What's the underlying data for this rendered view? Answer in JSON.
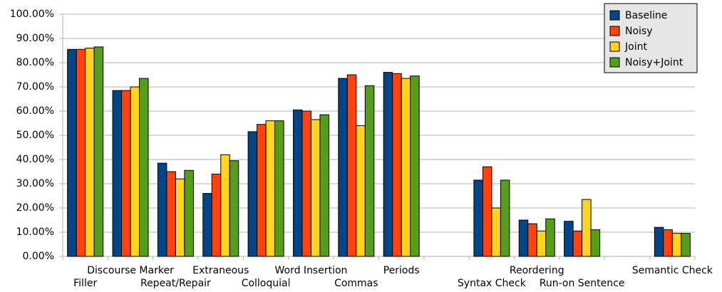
{
  "chart_data": {
    "type": "bar",
    "categories": [
      "Filler",
      "Discourse Marker",
      "Repeat/Repair",
      "Extraneous",
      "Colloquial",
      "Word Insertion",
      "Commas",
      "Periods",
      null,
      "Syntax Check",
      "Reordering",
      "Run-on Sentence",
      null,
      "Semantic Check"
    ],
    "series": [
      {
        "name": "Baseline",
        "color": "#004586",
        "values": [
          85.5,
          68.5,
          38.5,
          26,
          51.5,
          60.5,
          73.5,
          76,
          null,
          31.5,
          15,
          14.5,
          null,
          12
        ]
      },
      {
        "name": "Noisy",
        "color": "#ff420e",
        "values": [
          85.5,
          68.5,
          35,
          34,
          54.5,
          60,
          75,
          75.5,
          null,
          37,
          13.5,
          10.5,
          null,
          11
        ]
      },
      {
        "name": "Joint",
        "color": "#ffd320",
        "values": [
          86,
          70,
          32,
          42,
          56,
          56.5,
          54,
          73.5,
          null,
          20,
          10.5,
          23.5,
          null,
          9.5
        ]
      },
      {
        "name": "Noisy+Joint",
        "color": "#579d1c",
        "values": [
          86.5,
          73.5,
          35.5,
          39.5,
          56,
          58.5,
          70.5,
          74.5,
          null,
          31.5,
          15.5,
          11,
          null,
          9.5
        ]
      }
    ],
    "ylim": [
      0,
      100
    ],
    "yticks": [
      {
        "value": 0,
        "label": "0.00%"
      },
      {
        "value": 10,
        "label": "10.00%"
      },
      {
        "value": 20,
        "label": "20.00%"
      },
      {
        "value": 30,
        "label": "30.00%"
      },
      {
        "value": 40,
        "label": "40.00%"
      },
      {
        "value": 50,
        "label": "50.00%"
      },
      {
        "value": 60,
        "label": "60.00%"
      },
      {
        "value": 70,
        "label": "70.00%"
      },
      {
        "value": 80,
        "label": "80.00%"
      },
      {
        "value": 90,
        "label": "90.00%"
      },
      {
        "value": 100,
        "label": "100.00%"
      }
    ],
    "grid": true,
    "legend": "top-right"
  }
}
